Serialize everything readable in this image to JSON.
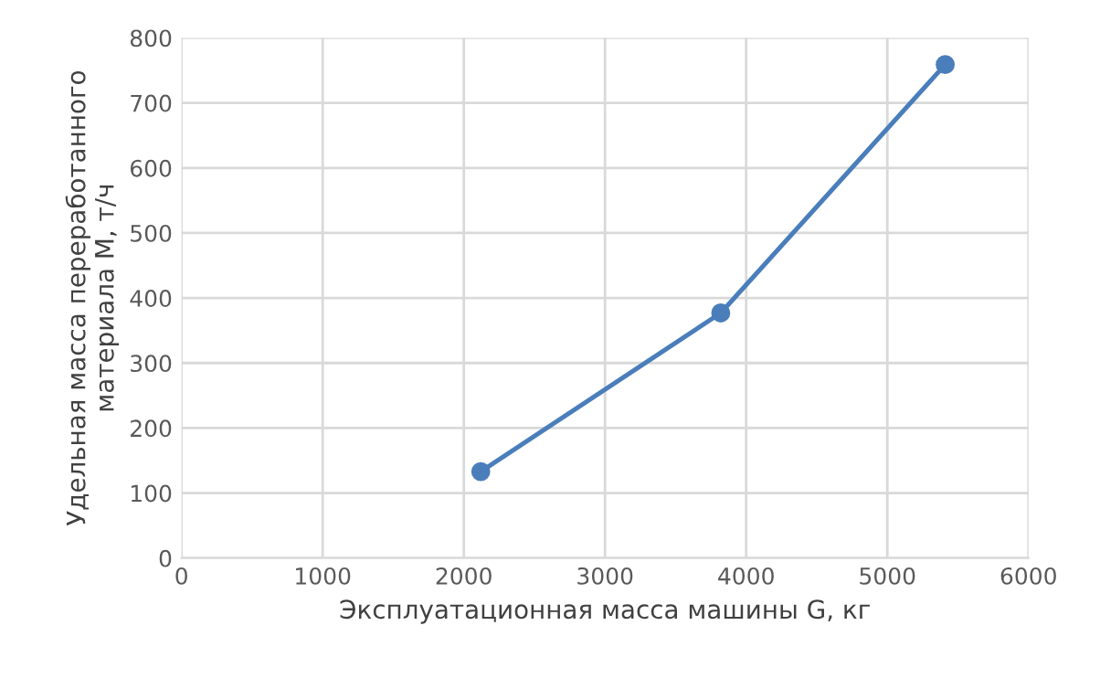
{
  "chart_data": {
    "type": "line",
    "xlabel": "Эксплуатационная масса машины G, кг",
    "ylabel": "Удельная масса переработанного\nматериала M, т/ч",
    "x": [
      2120,
      3820,
      5410
    ],
    "series": [
      {
        "color": "#4a7ebb",
        "values": [
          133,
          377,
          759
        ]
      }
    ],
    "xlim": [
      0,
      6000
    ],
    "xticks": [
      0,
      1000,
      2000,
      3000,
      4000,
      5000,
      6000
    ],
    "ylim": [
      0,
      800
    ],
    "yticks": [
      0,
      100,
      200,
      300,
      400,
      500,
      600,
      700,
      800
    ],
    "grid": true,
    "legend": false,
    "marker": "circle",
    "line_style": "solid"
  }
}
